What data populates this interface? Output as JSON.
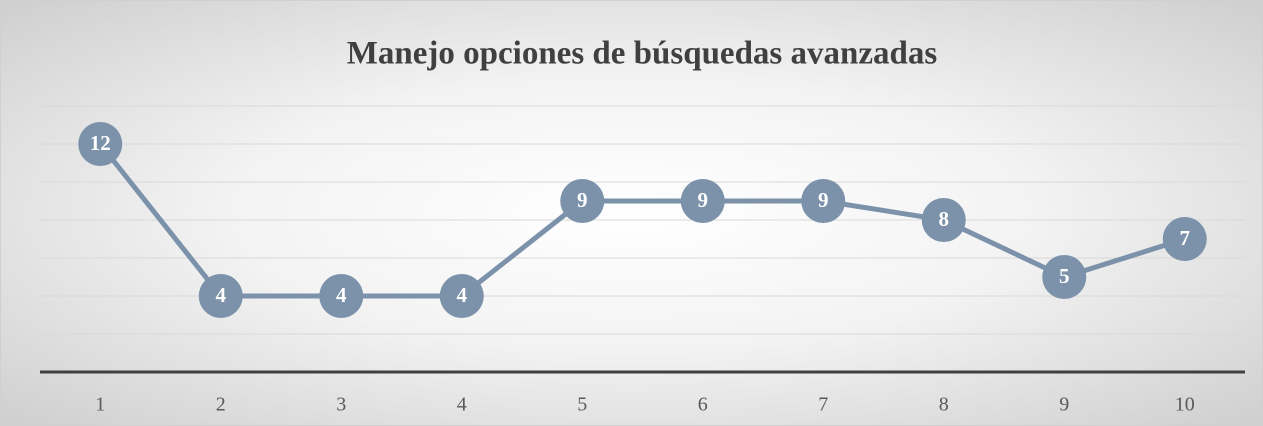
{
  "chart_data": {
    "type": "line",
    "title": "Manejo opciones de búsquedas avanzadas",
    "categories": [
      "1",
      "2",
      "3",
      "4",
      "5",
      "6",
      "7",
      "8",
      "9",
      "10"
    ],
    "values": [
      12,
      4,
      4,
      4,
      9,
      9,
      9,
      8,
      5,
      7
    ],
    "color": "#7b92aa",
    "ylim": [
      0,
      14
    ],
    "yticks": [
      0,
      2,
      4,
      6,
      8,
      10,
      12,
      14
    ],
    "grid": true
  }
}
